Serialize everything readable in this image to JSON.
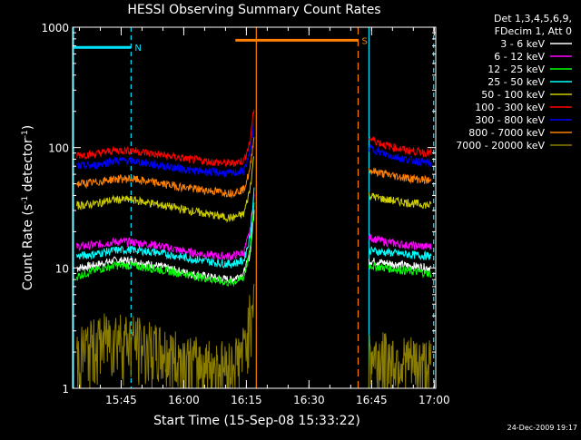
{
  "chart_data": {
    "type": "line",
    "title": "HESSI Observing Summary Count Rates",
    "xlabel": "Start Time (15-Sep-08 15:33:22)",
    "ylabel_main": "Count Rate (s",
    "ylabel_sup1": "-1",
    "ylabel_mid": " detector",
    "ylabel_sup2": "-1",
    "ylabel_end": ")",
    "footer": "24-Dec-2009 19:17",
    "y_scale": "log",
    "ylim": [
      1,
      1000
    ],
    "xlim_minutes": [
      0,
      87
    ],
    "x_ticks": [
      {
        "label": "15:45",
        "minute": 11.63
      },
      {
        "label": "16:00",
        "minute": 26.63
      },
      {
        "label": "16:15",
        "minute": 41.63
      },
      {
        "label": "16:30",
        "minute": 56.63
      },
      {
        "label": "16:45",
        "minute": 71.63
      },
      {
        "label": "17:00",
        "minute": 86.63
      }
    ],
    "y_ticks": [
      {
        "label": "1",
        "value": 1
      },
      {
        "label": "10",
        "value": 10
      },
      {
        "label": "100",
        "value": 100
      },
      {
        "label": "1000",
        "value": 1000
      }
    ],
    "legend": {
      "header1": "Det 1,3,4,5,6,9,",
      "header2": "FDecim 1, Att 0",
      "placement": "right"
    },
    "annotations": [
      {
        "label": "N",
        "color": "#00e5ff",
        "bar_from_minute": 0,
        "bar_to_minute": 14,
        "value": 680
      },
      {
        "label": "S",
        "color": "#ff7f00",
        "bar_from_minute": 39,
        "bar_to_minute": 68.4,
        "value": 780
      }
    ],
    "gaps_minutes": [
      [
        44,
        71
      ]
    ],
    "series": [
      {
        "name": "3 - 6 keV",
        "color": "#ffffff",
        "values": [
          [
            1,
            10
          ],
          [
            5,
            10.5
          ],
          [
            10,
            11.5
          ],
          [
            14,
            11.5
          ],
          [
            20,
            10.5
          ],
          [
            28,
            9
          ],
          [
            35,
            8.2
          ],
          [
            38,
            8
          ],
          [
            41,
            9
          ],
          [
            42.5,
            13
          ],
          [
            43.5,
            30
          ],
          [
            71,
            11.5
          ],
          [
            75,
            11
          ],
          [
            80,
            10.5
          ],
          [
            86,
            10
          ]
        ]
      },
      {
        "name": "6 - 12 keV",
        "color": "#ff00ff",
        "values": [
          [
            1,
            15
          ],
          [
            5,
            15.5
          ],
          [
            10,
            16.5
          ],
          [
            14,
            16.5
          ],
          [
            20,
            15.5
          ],
          [
            28,
            13.5
          ],
          [
            35,
            12.5
          ],
          [
            38,
            12.5
          ],
          [
            41,
            13.5
          ],
          [
            42.5,
            20
          ],
          [
            43.5,
            40
          ],
          [
            71,
            18
          ],
          [
            75,
            16.5
          ],
          [
            80,
            15.5
          ],
          [
            86,
            15
          ]
        ]
      },
      {
        "name": "12 - 25 keV",
        "color": "#00ff00",
        "values": [
          [
            1,
            8.5
          ],
          [
            5,
            9.5
          ],
          [
            10,
            10.5
          ],
          [
            14,
            10.5
          ],
          [
            20,
            9.8
          ],
          [
            28,
            8.8
          ],
          [
            35,
            7.8
          ],
          [
            38,
            7.5
          ],
          [
            41,
            8.3
          ],
          [
            42.5,
            14
          ],
          [
            43.5,
            35
          ],
          [
            71,
            10.5
          ],
          [
            75,
            10
          ],
          [
            80,
            9.5
          ],
          [
            86,
            9
          ]
        ]
      },
      {
        "name": "25 - 50 keV",
        "color": "#00ffff",
        "values": [
          [
            1,
            12.5
          ],
          [
            5,
            13
          ],
          [
            10,
            14
          ],
          [
            14,
            14.2
          ],
          [
            20,
            13.5
          ],
          [
            28,
            12
          ],
          [
            35,
            11
          ],
          [
            38,
            10.8
          ],
          [
            41,
            11.5
          ],
          [
            42.5,
            18
          ],
          [
            43.5,
            45
          ],
          [
            71,
            14
          ],
          [
            75,
            13.5
          ],
          [
            80,
            13
          ],
          [
            86,
            12.5
          ]
        ]
      },
      {
        "name": "50 - 100 keV",
        "color": "#cccc00",
        "values": [
          [
            1,
            33
          ],
          [
            5,
            34
          ],
          [
            10,
            37
          ],
          [
            14,
            37
          ],
          [
            20,
            34
          ],
          [
            28,
            30
          ],
          [
            35,
            27
          ],
          [
            38,
            26
          ],
          [
            41,
            28
          ],
          [
            42.5,
            45
          ],
          [
            43.5,
            90
          ],
          [
            71,
            40
          ],
          [
            75,
            37
          ],
          [
            80,
            35
          ],
          [
            86,
            33
          ]
        ]
      },
      {
        "name": "100 - 300 keV",
        "color": "#ff0000",
        "values": [
          [
            1,
            87
          ],
          [
            5,
            88
          ],
          [
            10,
            95
          ],
          [
            14,
            95
          ],
          [
            20,
            88
          ],
          [
            28,
            80
          ],
          [
            35,
            75
          ],
          [
            38,
            74
          ],
          [
            41,
            78
          ],
          [
            42.5,
            110
          ],
          [
            43.5,
            220
          ],
          [
            71,
            120
          ],
          [
            75,
            105
          ],
          [
            80,
            95
          ],
          [
            86,
            90
          ]
        ]
      },
      {
        "name": "300 - 800 keV",
        "color": "#0000ff",
        "values": [
          [
            1,
            70
          ],
          [
            5,
            71
          ],
          [
            10,
            78
          ],
          [
            14,
            78
          ],
          [
            20,
            72
          ],
          [
            28,
            65
          ],
          [
            35,
            62
          ],
          [
            38,
            61
          ],
          [
            41,
            64
          ],
          [
            42.5,
            90
          ],
          [
            43.5,
            160
          ],
          [
            71,
            100
          ],
          [
            75,
            88
          ],
          [
            80,
            80
          ],
          [
            86,
            74
          ]
        ]
      },
      {
        "name": "800 - 7000 keV",
        "color": "#ff7f00",
        "values": [
          [
            1,
            50
          ],
          [
            5,
            51
          ],
          [
            10,
            55
          ],
          [
            14,
            55
          ],
          [
            20,
            51
          ],
          [
            28,
            46
          ],
          [
            35,
            43
          ],
          [
            38,
            42
          ],
          [
            41,
            45
          ],
          [
            42.5,
            65
          ],
          [
            43.5,
            130
          ],
          [
            71,
            65
          ],
          [
            75,
            60
          ],
          [
            80,
            56
          ],
          [
            86,
            53
          ]
        ]
      },
      {
        "name": "7000 - 20000 keV",
        "color": "#8b7d00",
        "values": [
          [
            1,
            1.5
          ],
          [
            5,
            1.8
          ],
          [
            10,
            2.2
          ],
          [
            14,
            2
          ],
          [
            20,
            1.6
          ],
          [
            28,
            1.3
          ],
          [
            35,
            1.2
          ],
          [
            38,
            1.2
          ],
          [
            41,
            1.6
          ],
          [
            42.5,
            3
          ],
          [
            43.5,
            6
          ],
          [
            71,
            1.4
          ],
          [
            75,
            1.4
          ],
          [
            80,
            1.3
          ],
          [
            86,
            1.2
          ]
        ]
      }
    ]
  }
}
